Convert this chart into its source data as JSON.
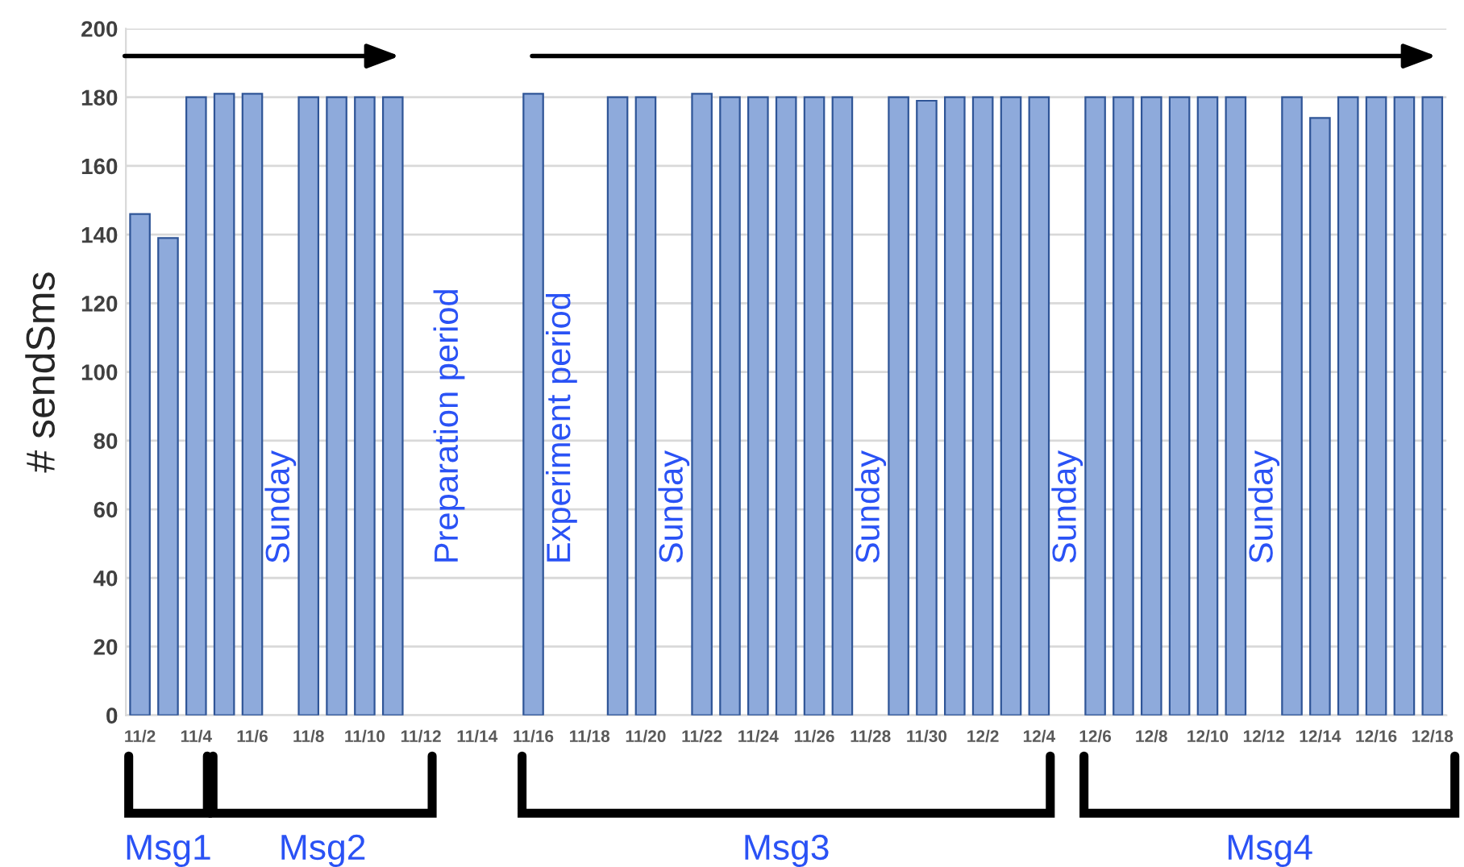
{
  "chart_data": {
    "type": "bar",
    "ylabel": "# sendSms",
    "categories": [
      "11/2",
      null,
      "11/4",
      null,
      "11/6",
      null,
      "11/8",
      null,
      "11/10",
      null,
      "11/12",
      null,
      "11/14",
      null,
      "11/16",
      null,
      "11/18",
      null,
      "11/20",
      null,
      "11/22",
      null,
      "11/24",
      null,
      "11/26",
      null,
      "11/28",
      null,
      "11/30",
      null,
      "12/2",
      null,
      "12/4",
      null,
      "12/6",
      null,
      "12/8",
      null,
      "12/10",
      null,
      "12/12",
      null,
      "12/14",
      null,
      "12/16",
      null,
      "12/18"
    ],
    "values": [
      146,
      139,
      180,
      181,
      181,
      null,
      180,
      180,
      180,
      180,
      null,
      null,
      null,
      null,
      181,
      null,
      null,
      180,
      180,
      null,
      181,
      180,
      180,
      180,
      180,
      180,
      null,
      180,
      179,
      180,
      180,
      180,
      180,
      null,
      180,
      180,
      180,
      180,
      180,
      180,
      null,
      180,
      174,
      180,
      180,
      180,
      180
    ],
    "color": "#8eaadb",
    "ylim": [
      0,
      200
    ],
    "yticks": [
      0,
      20,
      40,
      60,
      80,
      100,
      120,
      140,
      160,
      180,
      200
    ],
    "grid": "y",
    "annotations": [
      "Sunday",
      "Preparation period",
      "Experiment period",
      "Sunday",
      "Sunday",
      "Sunday",
      "Sunday",
      "Msg1",
      "Msg2",
      "Msg3",
      "Msg4"
    ]
  }
}
